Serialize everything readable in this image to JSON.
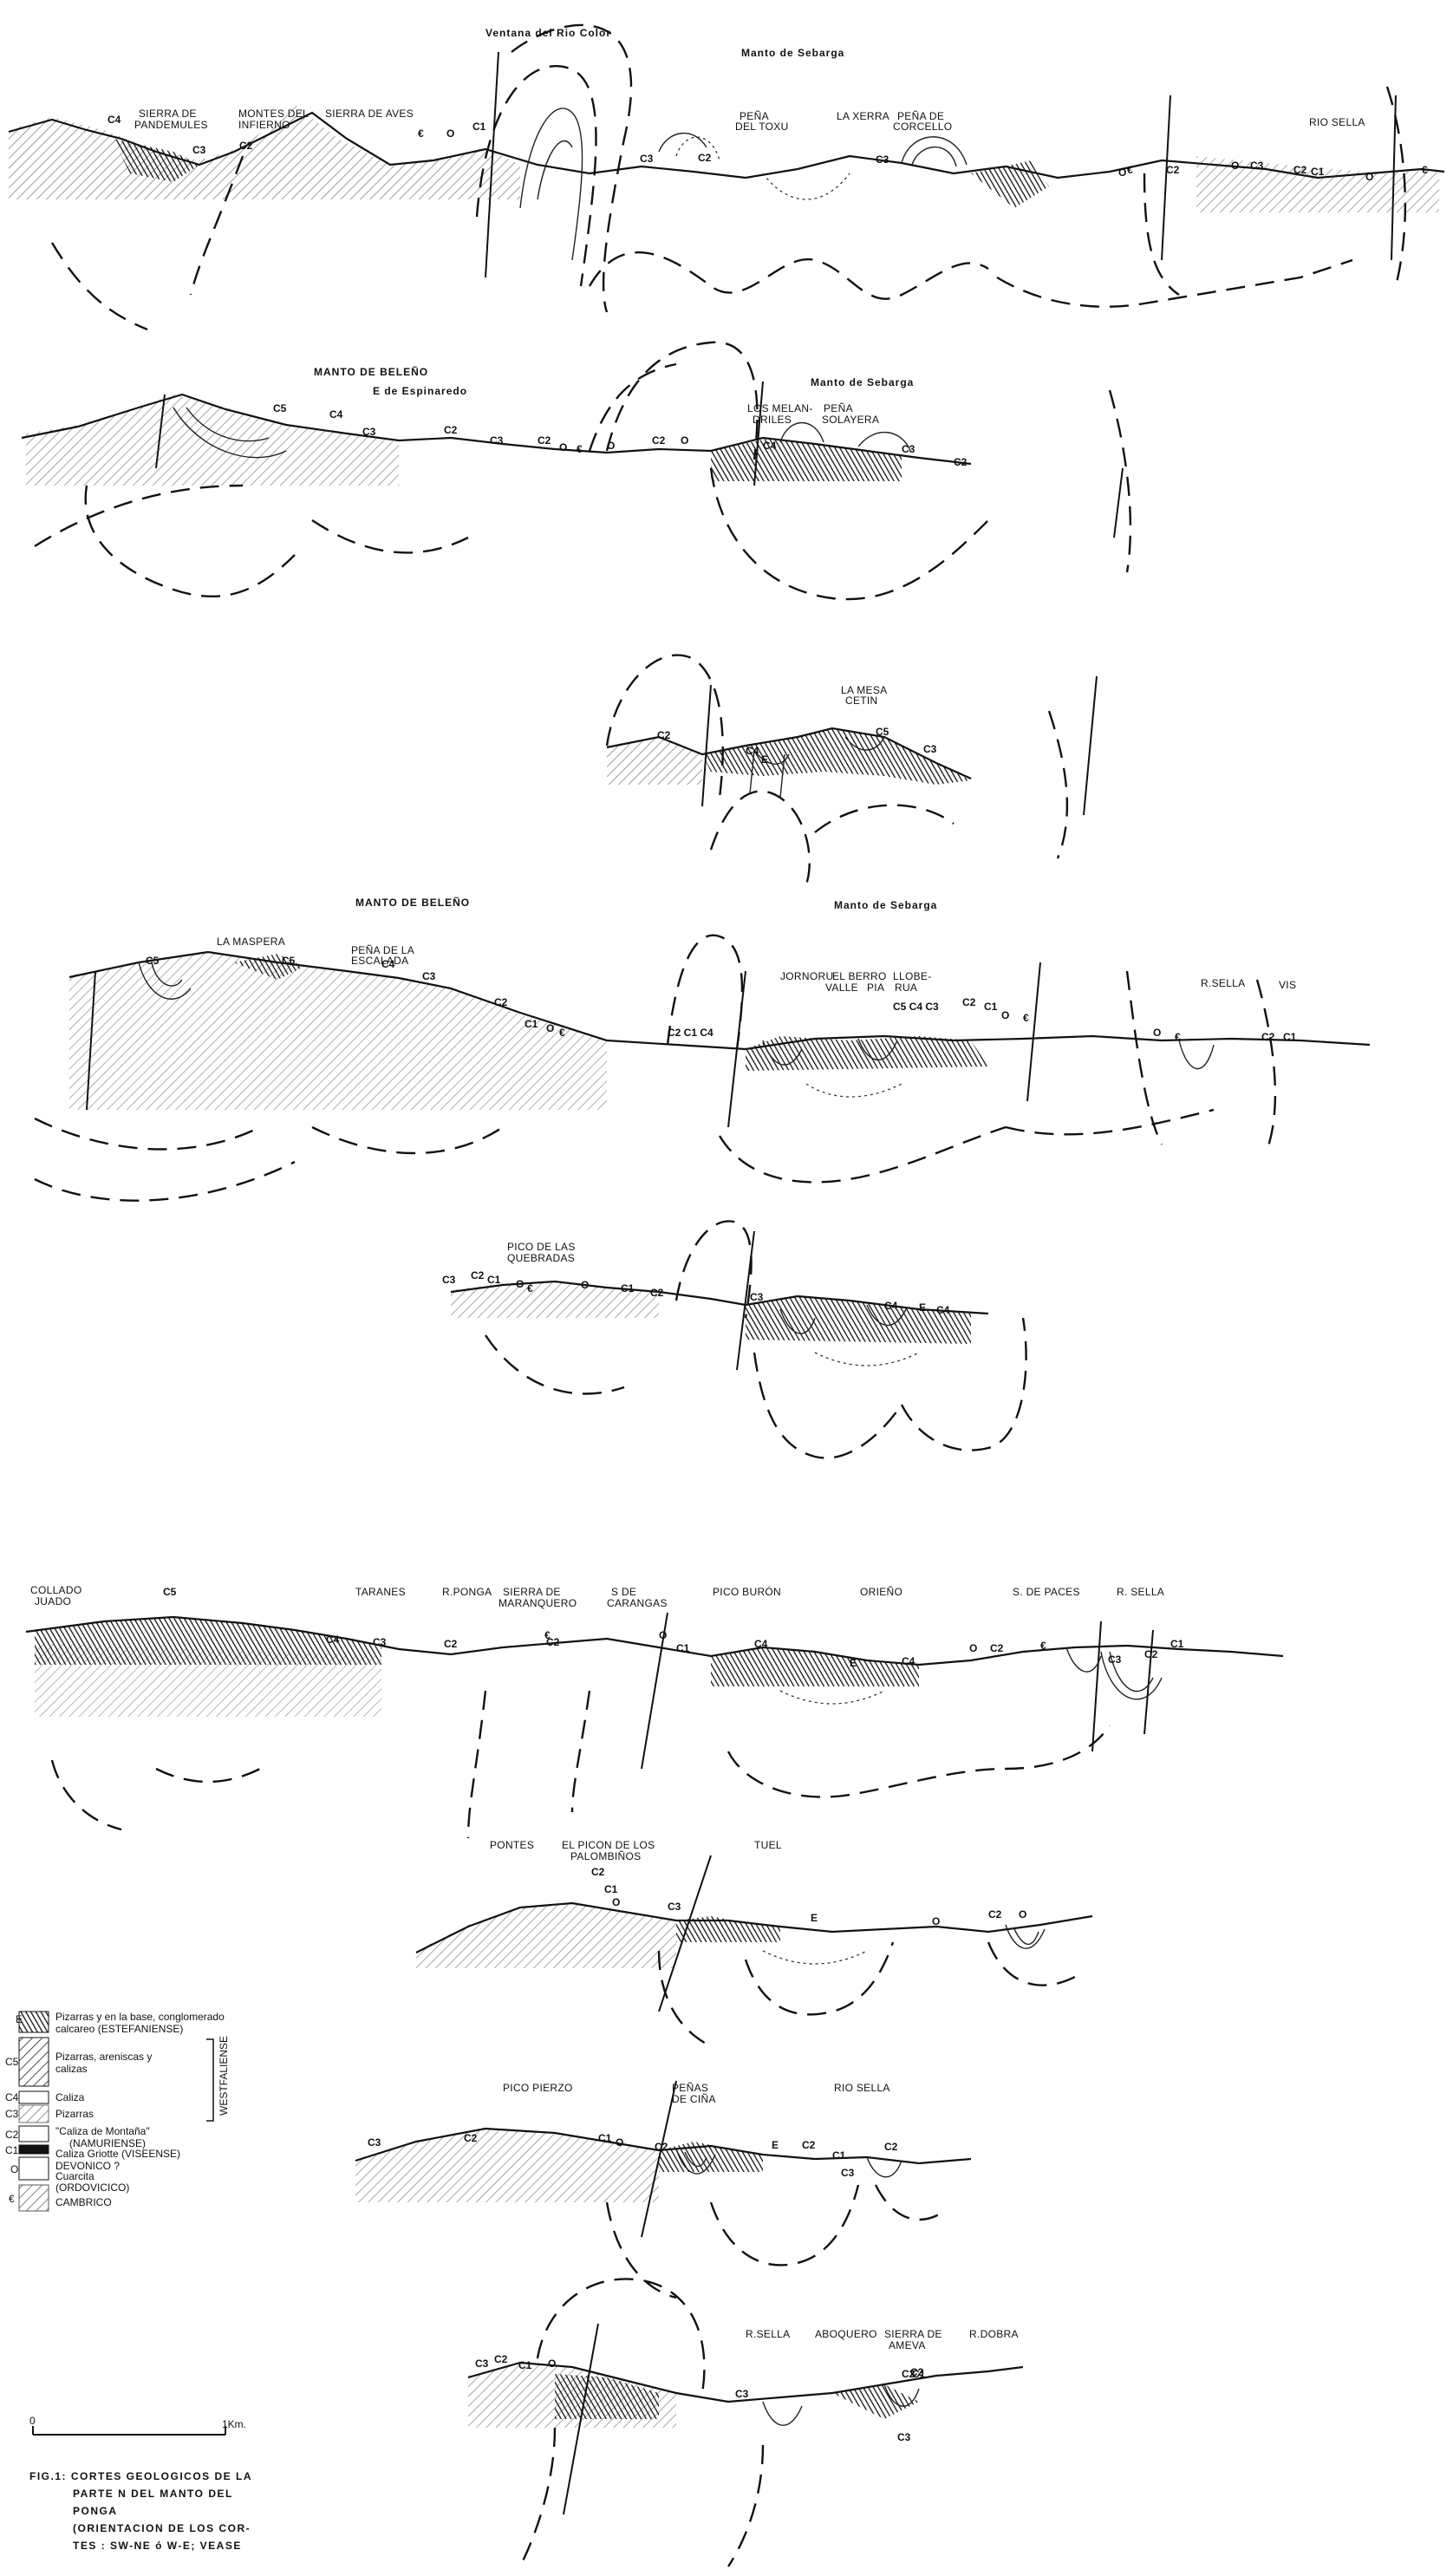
{
  "sections": [
    {
      "id": "s1",
      "titles": [
        "Ventana del Rio Color",
        "Manto de Sebarga"
      ],
      "labels": [
        "SIERRA DE",
        "PANDEMULES",
        "MONTES DEL",
        "INFIERNO",
        "SIERRA DE AVES",
        "PEÑA",
        "DEL TOXU",
        "LA XERRA",
        "PEÑA DE",
        "CORCELLO",
        "RIO SELLA"
      ],
      "units": [
        "C4",
        "C3",
        "C2",
        "€",
        "O",
        "C1",
        "C3",
        "C2",
        "C3",
        "O",
        "€",
        "C2",
        "O",
        "C3",
        "C2",
        "C1",
        "O",
        "€"
      ]
    },
    {
      "id": "s2",
      "titles": [
        "MANTO DE BELEÑO",
        "E de Espinaredo",
        "Manto de Sebarga"
      ],
      "labels": [
        "LOS MELAN-",
        "DRILES",
        "PEÑA",
        "SOLAYERA"
      ],
      "units": [
        "C5",
        "C4",
        "C3",
        "C2",
        "C3",
        "C2",
        "O",
        "€",
        "O",
        "C2",
        "O",
        "C4",
        "C3",
        "C2"
      ]
    },
    {
      "id": "s3",
      "titles": [],
      "labels": [
        "LA MESA",
        "CETIN"
      ],
      "units": [
        "C2",
        "C4",
        "E",
        "C5",
        "C3"
      ]
    },
    {
      "id": "s4",
      "titles": [
        "MANTO DE BELEÑO",
        "Manto de Sebarga"
      ],
      "labels": [
        "LA MASPERA",
        "PEÑA DE LA",
        "ESCALADA",
        "JORNORU",
        "EL BERRO",
        "VALLE",
        "PIA",
        "LLOBE-",
        "RUA",
        "R.SELLA",
        "VIS"
      ],
      "units": [
        "C5",
        "C5",
        "C4",
        "C3",
        "C2",
        "C1",
        "O",
        "€",
        "C2 C1 C4",
        "C5 C4 C3",
        "C2",
        "C1",
        "O",
        "€",
        "O",
        "€",
        "C2",
        "C1"
      ]
    },
    {
      "id": "s5",
      "titles": [],
      "labels": [
        "PICO DE LAS",
        "QUEBRADAS"
      ],
      "units": [
        "C3",
        "C2",
        "C1",
        "O",
        "€",
        "O",
        "C1",
        "C2",
        "C3",
        "C4",
        "E",
        "C4"
      ]
    },
    {
      "id": "s6",
      "titles": [],
      "labels": [
        "COLLADO",
        "JUADO",
        "TARANES",
        "R.PONGA",
        "SIERRA DE",
        "MARANQUERO",
        "S DE",
        "CARANGAS",
        "PICO BURÓN",
        "ORIEÑO",
        "S. DE PACES",
        "R. SELLA"
      ],
      "units": [
        "C5",
        "C4",
        "C3",
        "C2",
        "€",
        "C2",
        "O",
        "C1",
        "C4",
        "E",
        "C4",
        "O",
        "C2",
        "€",
        "C3",
        "C2",
        "C1"
      ]
    },
    {
      "id": "s7",
      "titles": [],
      "labels": [
        "PONTES",
        "EL PICON DE LOS",
        "PALOMBIÑOS",
        "TUEL"
      ],
      "units": [
        "C2",
        "C1",
        "O",
        "C3",
        "E",
        "O",
        "C2",
        "O"
      ]
    },
    {
      "id": "s8",
      "titles": [],
      "labels": [
        "PICO PIERZO",
        "PEÑAS",
        "DE CIÑA",
        "RIO SELLA"
      ],
      "units": [
        "C3",
        "C2",
        "C1",
        "O",
        "C2",
        "E",
        "C2",
        "C1",
        "C3",
        "C2"
      ]
    },
    {
      "id": "s9",
      "titles": [],
      "labels": [
        "R.SELLA",
        "ABOQUERO",
        "SIERRA DE",
        "AMEVA",
        "R.DOBRA"
      ],
      "units": [
        "C3",
        "C2",
        "C1",
        "O",
        "C3",
        "C2",
        "C1",
        "C3",
        "C2"
      ]
    }
  ],
  "legend": {
    "rows": [
      {
        "code": "E",
        "text": "Pizarras y en la base, conglomerado",
        "text2": "calcareo (ESTEFANIENSE)"
      },
      {
        "code": "C5",
        "text": "Pizarras, areniscas y",
        "text2": "calizas"
      },
      {
        "code": "C4",
        "text": "Caliza",
        "text2": ""
      },
      {
        "code": "C3",
        "text": "Pizarras",
        "text2": ""
      },
      {
        "code": "C2",
        "text": "\"Caliza de Montaña\"",
        "text2": "(NAMURIENSE)"
      },
      {
        "code": "C1",
        "text": "Caliza Griotte (VISEENSE)",
        "text2": "DEVONICO ?"
      },
      {
        "code": "O",
        "text": "Cuarcita",
        "text2": "(ORDOVICICO)"
      },
      {
        "code": "€",
        "text": "CAMBRICO",
        "text2": ""
      }
    ],
    "bracket_label": "WESTFALIENSE"
  },
  "scale": {
    "start": "0",
    "end": "1Km."
  },
  "caption": [
    "FIG.1:  CORTES GEOLOGICOS DE LA",
    "PARTE N DEL MANTO DEL",
    "PONGA",
    "(ORIENTACION DE LOS COR-",
    "TES : SW-NE ó W-E; VEASE"
  ],
  "colors": {
    "ink": "#111111",
    "paper": "#ffffff"
  }
}
